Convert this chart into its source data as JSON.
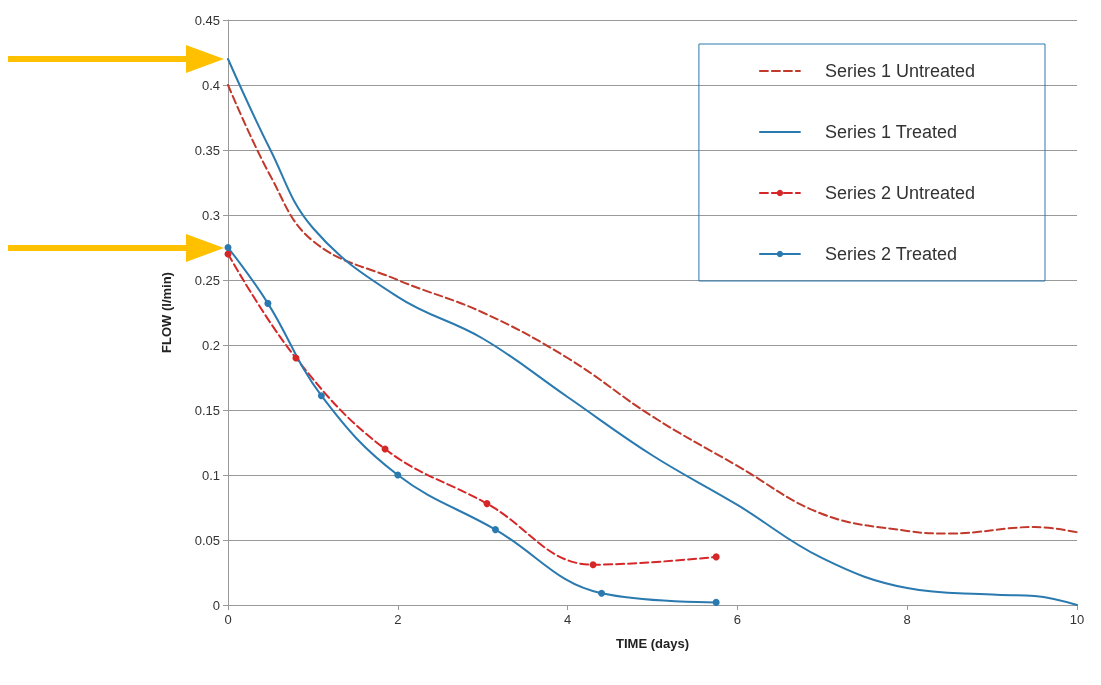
{
  "chart_data": {
    "type": "line",
    "xlabel": "TIME (days)",
    "ylabel": "FLOW (l/min)",
    "xlim": [
      0,
      10
    ],
    "xticks": [
      0,
      2,
      4,
      6,
      8,
      10
    ],
    "ylim": [
      0,
      0.45
    ],
    "yticks": [
      0,
      0.05,
      0.1,
      0.15,
      0.2,
      0.25,
      0.3,
      0.35,
      0.4,
      0.45
    ],
    "grid": "y",
    "legend": "top right",
    "series": [
      {
        "name": "Series 1 Untreated",
        "color": "#c0392b",
        "line_style": "dashed",
        "marker": "none",
        "x": [
          0,
          0.5,
          1,
          2,
          3,
          4,
          5,
          6,
          7,
          8,
          8.5,
          9.5,
          10
        ],
        "values": [
          0.4,
          0.33,
          0.28,
          0.25,
          0.225,
          0.19,
          0.145,
          0.107,
          0.07,
          0.057,
          0.055,
          0.06,
          0.056
        ]
      },
      {
        "name": "Series 1 Treated",
        "color": "#2a7ab0",
        "line_style": "solid",
        "marker": "none",
        "x": [
          0,
          0.5,
          1,
          2,
          3,
          4,
          5,
          6,
          7,
          8,
          9,
          9.5,
          10
        ],
        "values": [
          0.42,
          0.35,
          0.29,
          0.237,
          0.205,
          0.16,
          0.115,
          0.077,
          0.036,
          0.013,
          0.008,
          0.007,
          0
        ]
      },
      {
        "name": "Series 2 Untreated",
        "color": "#d62728",
        "line_style": "dashed",
        "marker": "circle",
        "x": [
          0,
          0.8,
          1.85,
          3.05,
          4.3,
          5.75
        ],
        "values": [
          0.27,
          0.19,
          0.12,
          0.078,
          0.031,
          0.037
        ]
      },
      {
        "name": "Series 2 Treated",
        "color": "#2a7ab0",
        "line_style": "solid",
        "marker": "circle",
        "x": [
          0,
          0.47,
          1.1,
          2,
          3.15,
          4.4,
          5.75
        ],
        "values": [
          0.275,
          0.232,
          0.161,
          0.1,
          0.058,
          0.009,
          0.002
        ]
      }
    ]
  }
}
